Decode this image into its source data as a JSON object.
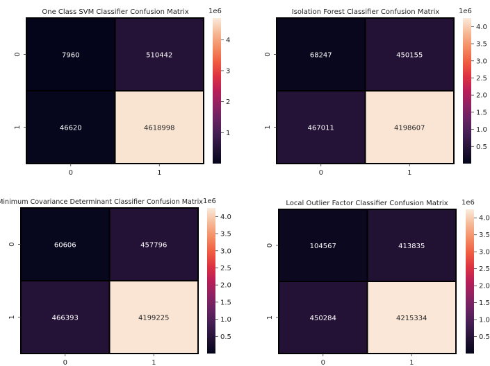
{
  "chart_data": [
    {
      "type": "heatmap",
      "title": "One Class SVM Classifier Confusion Matrix",
      "x_categories": [
        "0",
        "1"
      ],
      "y_categories": [
        "0",
        "1"
      ],
      "values": [
        [
          7960,
          510442
        ],
        [
          46620,
          4618998
        ]
      ],
      "colorbar": {
        "ticks": [
          1,
          2,
          3,
          4
        ],
        "ticks_labels": [
          "1",
          "2",
          "3",
          "4"
        ],
        "multiplier_label": "1e6",
        "range": [
          0,
          4.7
        ]
      },
      "colormap": "rocket"
    },
    {
      "type": "heatmap",
      "title": "Isolation Forest Classifier Confusion Matrix",
      "x_categories": [
        "0",
        "1"
      ],
      "y_categories": [
        "0",
        "1"
      ],
      "values": [
        [
          68247,
          450155
        ],
        [
          467011,
          4198607
        ]
      ],
      "colorbar": {
        "ticks": [
          0.5,
          1.0,
          1.5,
          2.0,
          2.5,
          3.0,
          3.5,
          4.0
        ],
        "ticks_labels": [
          "0.5",
          "1.0",
          "1.5",
          "2.0",
          "2.5",
          "3.0",
          "3.5",
          "4.0"
        ],
        "multiplier_label": "1e6",
        "range": [
          0,
          4.25
        ]
      },
      "colormap": "rocket"
    },
    {
      "type": "heatmap",
      "title": "Minimum Covariance Determinant Classifier Confusion Matrix",
      "x_categories": [
        "0",
        "1"
      ],
      "y_categories": [
        "0",
        "1"
      ],
      "values": [
        [
          60606,
          457796
        ],
        [
          466393,
          4199225
        ]
      ],
      "colorbar": {
        "ticks": [
          0.5,
          1.0,
          1.5,
          2.0,
          2.5,
          3.0,
          3.5,
          4.0
        ],
        "ticks_labels": [
          "0.5",
          "1.0",
          "1.5",
          "2.0",
          "2.5",
          "3.0",
          "3.5",
          "4.0"
        ],
        "multiplier_label": "1e6",
        "range": [
          0,
          4.25
        ]
      },
      "colormap": "rocket"
    },
    {
      "type": "heatmap",
      "title": "Local Outlier Factor Classifier Confusion Matrix",
      "x_categories": [
        "0",
        "1"
      ],
      "y_categories": [
        "0",
        "1"
      ],
      "values": [
        [
          104567,
          413835
        ],
        [
          450284,
          4215334
        ]
      ],
      "colorbar": {
        "ticks": [
          0.5,
          1.0,
          1.5,
          2.0,
          2.5,
          3.0,
          3.5,
          4.0
        ],
        "ticks_labels": [
          "0.5",
          "1.0",
          "1.5",
          "2.0",
          "2.5",
          "3.0",
          "3.5",
          "4.0"
        ],
        "multiplier_label": "1e6",
        "range": [
          0,
          4.25
        ]
      },
      "colormap": "rocket"
    }
  ]
}
